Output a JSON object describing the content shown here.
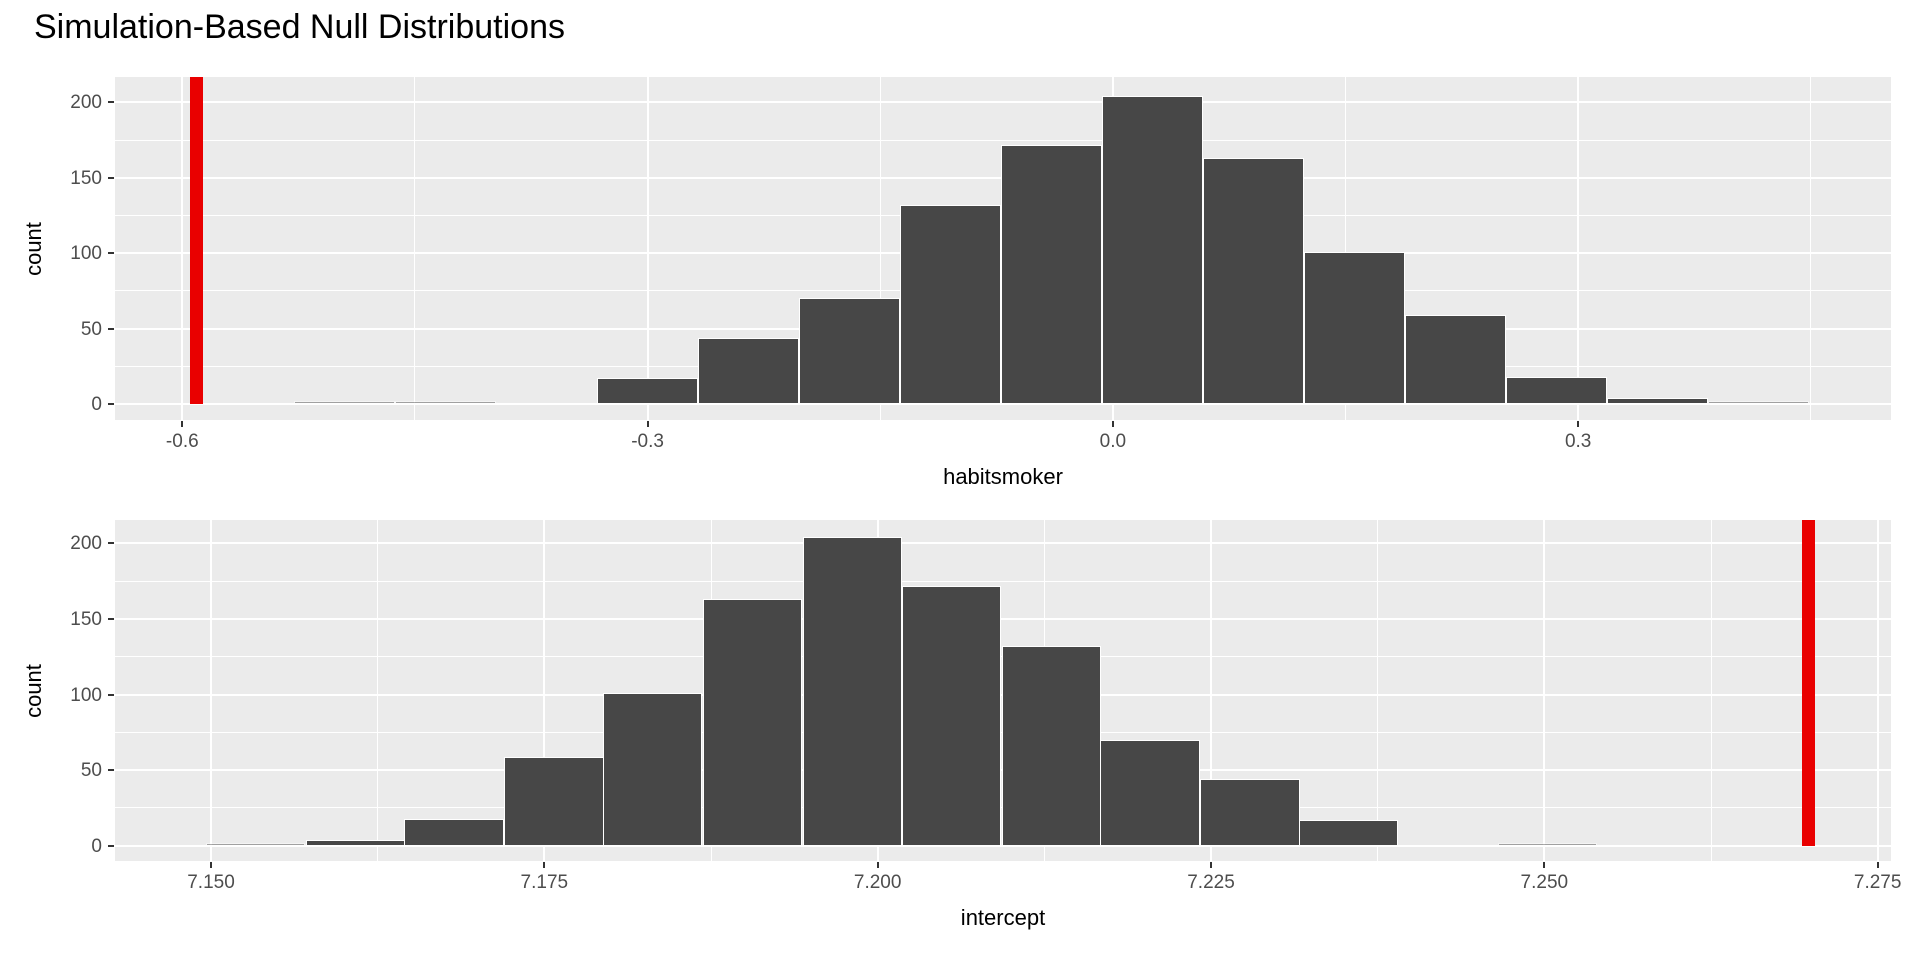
{
  "title": "Simulation-Based Null Distributions",
  "colors": {
    "background": "#ffffff",
    "panel_background": "#ebebeb",
    "gridline": "#ffffff",
    "bar_fill": "#474747",
    "bar_border": "#ffffff",
    "observed_line": "#e90000",
    "tick_label": "#4d4d4d",
    "axis_title": "#000000",
    "title_text": "#000000"
  },
  "chart_data": [
    {
      "type": "bar",
      "subtype": "histogram",
      "name": "habitsmoker-null-distribution",
      "xlabel": "habitsmoker",
      "ylabel": "count",
      "bin_width": 0.0651,
      "bins": [
        {
          "x0": -0.5277,
          "count": 1
        },
        {
          "x0": -0.4626,
          "count": 1
        },
        {
          "x0": -0.3975,
          "count": 0
        },
        {
          "x0": -0.3324,
          "count": 17
        },
        {
          "x0": -0.2673,
          "count": 44
        },
        {
          "x0": -0.2022,
          "count": 70
        },
        {
          "x0": -0.1371,
          "count": 132
        },
        {
          "x0": -0.072,
          "count": 172
        },
        {
          "x0": -0.0069,
          "count": 204
        },
        {
          "x0": 0.0582,
          "count": 163
        },
        {
          "x0": 0.1233,
          "count": 101
        },
        {
          "x0": 0.1884,
          "count": 59
        },
        {
          "x0": 0.2535,
          "count": 18
        },
        {
          "x0": 0.3186,
          "count": 4
        },
        {
          "x0": 0.3837,
          "count": 1
        }
      ],
      "observed_stat": -0.591,
      "x_domain": [
        -0.6434,
        0.5017
      ],
      "y_domain": [
        -10.6,
        216.9
      ],
      "x_ticks": [
        -0.6,
        -0.3,
        0.0,
        0.3
      ],
      "x_tick_labels": [
        "-0.6",
        "-0.3",
        "0.0",
        "0.3"
      ],
      "x_minor": [
        -0.45,
        -0.15,
        0.15,
        0.45
      ],
      "y_ticks": [
        0,
        50,
        100,
        150,
        200
      ],
      "y_tick_labels": [
        "0",
        "50",
        "100",
        "150",
        "200"
      ],
      "y_minor": [
        25,
        75,
        125,
        175
      ],
      "grid": true,
      "legend": "none"
    },
    {
      "type": "bar",
      "subtype": "histogram",
      "name": "intercept-null-distribution",
      "xlabel": "intercept",
      "ylabel": "count",
      "bin_width": 0.00746,
      "bins": [
        {
          "x0": 7.1496,
          "count": 1
        },
        {
          "x0": 7.1571,
          "count": 4
        },
        {
          "x0": 7.1645,
          "count": 18
        },
        {
          "x0": 7.172,
          "count": 59
        },
        {
          "x0": 7.1794,
          "count": 101
        },
        {
          "x0": 7.1869,
          "count": 163
        },
        {
          "x0": 7.1944,
          "count": 204
        },
        {
          "x0": 7.2018,
          "count": 172
        },
        {
          "x0": 7.2093,
          "count": 132
        },
        {
          "x0": 7.2167,
          "count": 70
        },
        {
          "x0": 7.2242,
          "count": 44
        },
        {
          "x0": 7.2316,
          "count": 17
        },
        {
          "x0": 7.2391,
          "count": 0
        },
        {
          "x0": 7.2465,
          "count": 1
        }
      ],
      "observed_stat": 7.2698,
      "x_domain": [
        7.1428,
        7.276
      ],
      "y_domain": [
        -10.1,
        215.5
      ],
      "x_ticks": [
        7.15,
        7.175,
        7.2,
        7.225,
        7.25,
        7.275
      ],
      "x_tick_labels": [
        "7.150",
        "7.175",
        "7.200",
        "7.225",
        "7.250",
        "7.275"
      ],
      "x_minor": [
        7.1625,
        7.1875,
        7.2125,
        7.2375,
        7.2625
      ],
      "y_ticks": [
        0,
        50,
        100,
        150,
        200
      ],
      "y_tick_labels": [
        "0",
        "50",
        "100",
        "150",
        "200"
      ],
      "y_minor": [
        25,
        75,
        125,
        175
      ],
      "grid": true,
      "legend": "none"
    }
  ]
}
